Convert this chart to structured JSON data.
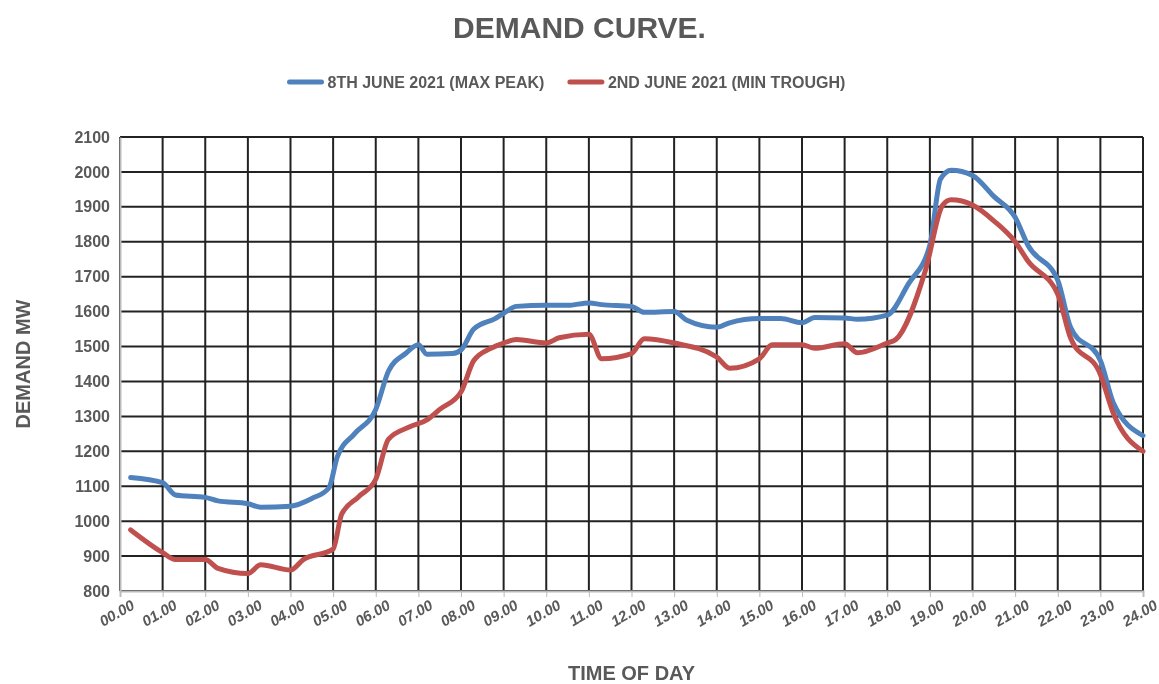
{
  "chart_data": {
    "type": "line",
    "title": "DEMAND CURVE.",
    "xlabel": "TIME OF DAY",
    "ylabel": "DEMAND MW",
    "legend": "top",
    "grid": true,
    "marker": "none",
    "line_style": "solid",
    "xlim": [
      0,
      24
    ],
    "ylim": [
      800,
      2100
    ],
    "xticks": [
      {
        "value": 0,
        "label": "00.00"
      },
      {
        "value": 1,
        "label": "01.00"
      },
      {
        "value": 2,
        "label": "02.00"
      },
      {
        "value": 3,
        "label": "03.00"
      },
      {
        "value": 4,
        "label": "04.00"
      },
      {
        "value": 5,
        "label": "05.00"
      },
      {
        "value": 6,
        "label": "06.00"
      },
      {
        "value": 7,
        "label": "07.00"
      },
      {
        "value": 8,
        "label": "08.00"
      },
      {
        "value": 9,
        "label": "09.00"
      },
      {
        "value": 10,
        "label": "10.00"
      },
      {
        "value": 11,
        "label": "11.00"
      },
      {
        "value": 12,
        "label": "12.00"
      },
      {
        "value": 13,
        "label": "13.00"
      },
      {
        "value": 14,
        "label": "14.00"
      },
      {
        "value": 15,
        "label": "15.00"
      },
      {
        "value": 16,
        "label": "16.00"
      },
      {
        "value": 17,
        "label": "17.00"
      },
      {
        "value": 18,
        "label": "18.00"
      },
      {
        "value": 19,
        "label": "19.00"
      },
      {
        "value": 20,
        "label": "20.00"
      },
      {
        "value": 21,
        "label": "21.00"
      },
      {
        "value": 22,
        "label": "22.00"
      },
      {
        "value": 23,
        "label": "23.00"
      },
      {
        "value": 24,
        "label": "24.00"
      }
    ],
    "yticks": [
      800,
      900,
      1000,
      1100,
      1200,
      1300,
      1400,
      1500,
      1600,
      1700,
      1800,
      1900,
      2000,
      2100
    ],
    "series": [
      {
        "name": "8TH JUNE 2021 (MAX PEAK)",
        "color": "#4f81bd",
        "x": [
          0.25,
          1,
          1.3,
          2,
          2.3,
          3,
          3.3,
          4,
          4.5,
          4.9,
          5.1,
          5.5,
          6,
          6.3,
          6.7,
          7,
          7.2,
          7.8,
          8,
          8.3,
          8.8,
          9,
          9.3,
          10,
          10.5,
          11,
          11.3,
          12,
          12.3,
          13,
          13.3,
          14,
          14.3,
          15,
          15.5,
          16,
          16.3,
          17,
          17.3,
          18,
          18.5,
          19,
          19.25,
          19.5,
          20,
          20.5,
          21,
          21.3,
          22,
          22.3,
          23,
          23.3,
          24
        ],
        "values": [
          1125,
          1110,
          1075,
          1068,
          1058,
          1050,
          1040,
          1043,
          1065,
          1095,
          1185,
          1250,
          1320,
          1430,
          1480,
          1505,
          1478,
          1480,
          1490,
          1550,
          1580,
          1595,
          1615,
          1618,
          1618,
          1625,
          1620,
          1615,
          1598,
          1600,
          1575,
          1555,
          1568,
          1580,
          1580,
          1568,
          1583,
          1582,
          1578,
          1590,
          1680,
          1790,
          1980,
          2005,
          1990,
          1930,
          1870,
          1790,
          1690,
          1555,
          1460,
          1340,
          1245
        ]
      },
      {
        "name": "2ND JUNE 2021 (MIN TROUGH)",
        "color": "#c0504d",
        "x": [
          0.25,
          1,
          1.3,
          2,
          2.3,
          3,
          3.3,
          4,
          4.3,
          5,
          5.2,
          5.6,
          6,
          6.3,
          6.8,
          7.2,
          7.5,
          8,
          8.3,
          8.7,
          9,
          9.3,
          10,
          10.3,
          11,
          11.3,
          12,
          12.3,
          13,
          14,
          14.3,
          15,
          15.3,
          16,
          16.3,
          17,
          17.3,
          18,
          18.2,
          18.9,
          19.3,
          19.5,
          20,
          20.5,
          21,
          21.3,
          22,
          22.3,
          23,
          23.3,
          24
        ],
        "values": [
          975,
          910,
          890,
          890,
          865,
          850,
          875,
          860,
          890,
          920,
          1020,
          1070,
          1120,
          1235,
          1270,
          1290,
          1320,
          1370,
          1460,
          1495,
          1510,
          1520,
          1510,
          1525,
          1535,
          1465,
          1480,
          1522,
          1510,
          1470,
          1438,
          1465,
          1505,
          1505,
          1495,
          1508,
          1482,
          1510,
          1520,
          1720,
          1905,
          1920,
          1905,
          1860,
          1800,
          1745,
          1650,
          1525,
          1420,
          1310,
          1200
        ]
      }
    ]
  }
}
